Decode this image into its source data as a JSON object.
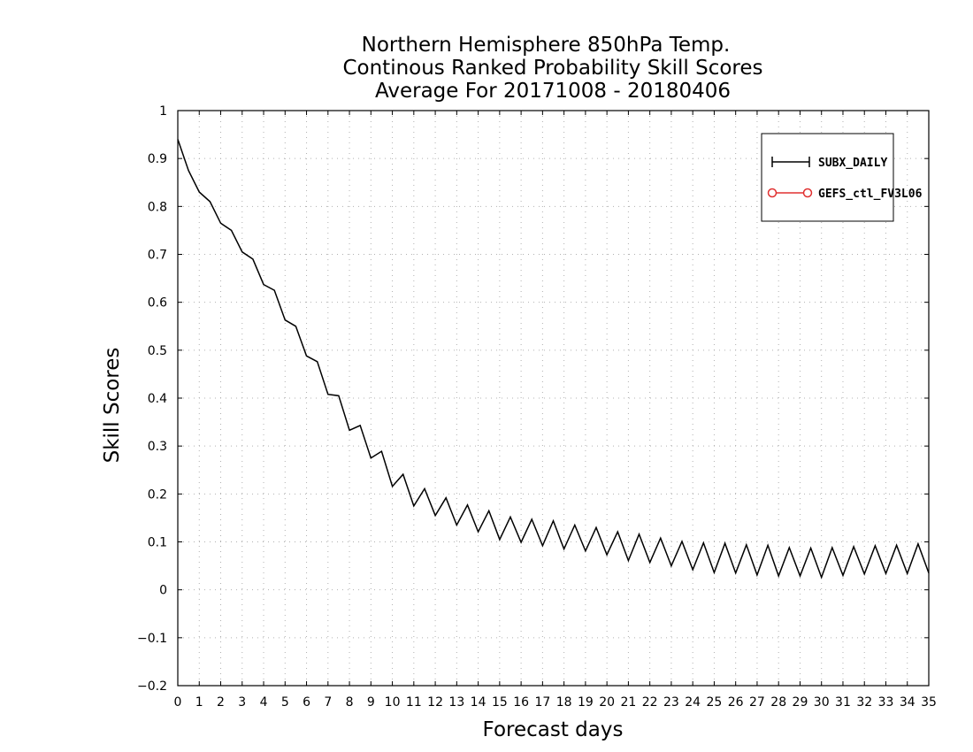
{
  "chart_data": {
    "type": "line",
    "title_lines": [
      "Northern Hemisphere 850hPa Temp.",
      "Continous Ranked Probability Skill Scores",
      "Average For 20171008 - 20180406"
    ],
    "xlabel": "Forecast days",
    "ylabel": "Skill Scores",
    "xlim": [
      0,
      35
    ],
    "ylim": [
      -0.2,
      1
    ],
    "x_ticks": [
      0,
      1,
      2,
      3,
      4,
      5,
      6,
      7,
      8,
      9,
      10,
      11,
      12,
      13,
      14,
      15,
      16,
      17,
      18,
      19,
      20,
      21,
      22,
      23,
      24,
      25,
      26,
      27,
      28,
      29,
      30,
      31,
      32,
      33,
      34,
      35
    ],
    "y_ticks": [
      -0.2,
      -0.1,
      0,
      0.1,
      0.2,
      0.3,
      0.4,
      0.5,
      0.6,
      0.7,
      0.8,
      0.9,
      1
    ],
    "y_tick_labels": [
      "−0.2",
      "−0.1",
      "0",
      "0.1",
      "0.2",
      "0.3",
      "0.4",
      "0.5",
      "0.6",
      "0.7",
      "0.8",
      "0.9",
      "1"
    ],
    "grid": true,
    "legend_position": "top-right",
    "series": [
      {
        "name": "SUBX_DAILY",
        "color": "#000000",
        "marker": "plus",
        "x": [
          0,
          0.5,
          1,
          1.5,
          2,
          2.5,
          3,
          3.5,
          4,
          4.5,
          5,
          5.5,
          6,
          6.5,
          7,
          7.5,
          8,
          8.5,
          9,
          9.5,
          10,
          10.5,
          11,
          11.5,
          12,
          12.5,
          13,
          13.5,
          14,
          14.5,
          15,
          15.5,
          16,
          16.5,
          17,
          17.5,
          18,
          18.5,
          19,
          19.5,
          20,
          20.5,
          21,
          21.5,
          22,
          22.5,
          23,
          23.5,
          24,
          24.5,
          25,
          25.5,
          26,
          26.5,
          27,
          27.5,
          28,
          28.5,
          29,
          29.5,
          30,
          30.5,
          31,
          31.5,
          32,
          32.5,
          33,
          33.5,
          34,
          34.5,
          35
        ],
        "values": [
          0.94,
          0.875,
          0.83,
          0.81,
          0.765,
          0.75,
          0.705,
          0.69,
          0.637,
          0.625,
          0.563,
          0.55,
          0.488,
          0.476,
          0.408,
          0.405,
          0.333,
          0.343,
          0.275,
          0.289,
          0.216,
          0.241,
          0.175,
          0.211,
          0.155,
          0.192,
          0.135,
          0.177,
          0.121,
          0.165,
          0.105,
          0.152,
          0.099,
          0.147,
          0.092,
          0.144,
          0.085,
          0.135,
          0.081,
          0.13,
          0.073,
          0.121,
          0.061,
          0.116,
          0.057,
          0.108,
          0.05,
          0.101,
          0.042,
          0.098,
          0.036,
          0.097,
          0.035,
          0.094,
          0.031,
          0.093,
          0.029,
          0.088,
          0.029,
          0.087,
          0.026,
          0.088,
          0.03,
          0.09,
          0.033,
          0.092,
          0.034,
          0.093,
          0.034,
          0.096,
          0.035
        ]
      },
      {
        "name": "GEFS_ctl_FV3L06",
        "color": "#e03030",
        "marker": "circle",
        "x": [],
        "values": []
      }
    ]
  }
}
